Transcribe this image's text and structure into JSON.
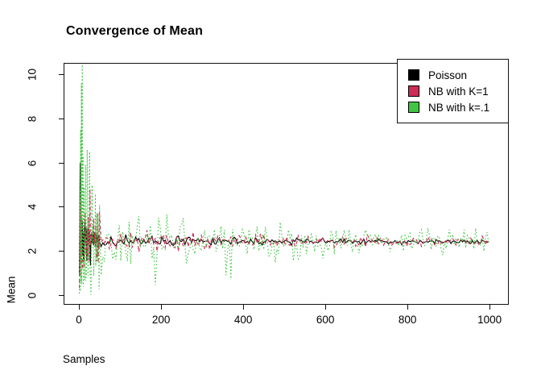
{
  "title": "Convergence of Mean",
  "chart_data": {
    "type": "line",
    "title": "Convergence of Mean",
    "xlabel": "Samples",
    "ylabel": "Mean",
    "x_ticks": [
      0,
      200,
      400,
      600,
      800,
      1000
    ],
    "y_ticks": [
      0,
      2,
      4,
      6,
      8,
      10
    ],
    "xlim": [
      -37.4,
      1046.8
    ],
    "ylim": [
      -0.41,
      10.52
    ],
    "x_range_samples": [
      1,
      1000
    ],
    "grid": false,
    "legend_position": "top-right",
    "converged_mean": 2.45,
    "series": [
      {
        "name": "Poisson",
        "color": "#000000",
        "line_style": "solid",
        "stroke_width": 1.1,
        "mean": 2.45,
        "sd_n1": 1.58,
        "seed": 7,
        "notable_points": [
          [
            1,
            1.0
          ],
          [
            2,
            3.3
          ],
          [
            3,
            6.0
          ],
          [
            4,
            1.6
          ],
          [
            5,
            3.0
          ],
          [
            6,
            2.1
          ],
          [
            8,
            3.4
          ]
        ]
      },
      {
        "name": "NB with K=1",
        "color": "#CE2D55",
        "line_style": "dashed",
        "stroke_width": 1.2,
        "mean": 2.45,
        "sd_n1": 2.96,
        "seed": 13,
        "notable_points": [
          [
            1,
            0.35
          ],
          [
            2,
            4.4
          ],
          [
            3,
            0.9
          ],
          [
            4,
            4.1
          ],
          [
            5,
            1.4
          ],
          [
            6,
            3.6
          ],
          [
            9,
            1.2
          ]
        ]
      },
      {
        "name": "NB with k=.1",
        "color": "#41C541",
        "line_style": "dotted",
        "stroke_width": 1.1,
        "mean": 2.45,
        "sd_n1": 8.06,
        "seed": 5,
        "notable_points": [
          [
            1,
            0.1
          ],
          [
            2,
            4.8
          ],
          [
            3,
            0.2
          ],
          [
            4,
            7.5
          ],
          [
            5,
            0.6
          ],
          [
            6,
            9.6
          ],
          [
            7,
            0.5
          ],
          [
            8,
            11.2
          ],
          [
            9,
            1.5
          ],
          [
            10,
            6.3
          ],
          [
            11,
            0.4
          ],
          [
            12,
            4.9
          ],
          [
            14,
            0.7
          ],
          [
            16,
            5.9
          ],
          [
            18,
            1.0
          ],
          [
            20,
            6.6
          ],
          [
            22,
            0.9
          ],
          [
            25,
            5.4
          ],
          [
            28,
            1.1
          ],
          [
            32,
            5.0
          ],
          [
            36,
            0.9
          ],
          [
            40,
            4.6
          ]
        ]
      }
    ]
  },
  "legend": {
    "items": [
      {
        "label": "Poisson",
        "color": "#000000"
      },
      {
        "label": "NB with K=1",
        "color": "#CE2D55"
      },
      {
        "label": "NB with k=.1",
        "color": "#41C541"
      }
    ]
  }
}
